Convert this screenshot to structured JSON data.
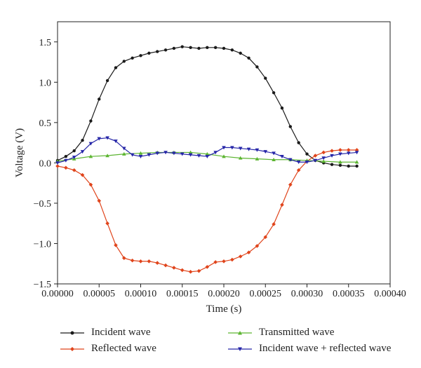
{
  "chart_data": {
    "type": "line",
    "xlabel": "Time (s)",
    "ylabel": "Voltage (V)",
    "xlim": [
      0,
      0.0004
    ],
    "ylim": [
      -1.5,
      1.75
    ],
    "xticks": [
      "0.00000",
      "0.00005",
      "0.00010",
      "0.00015",
      "0.00020",
      "0.00025",
      "0.00030",
      "0.00035",
      "0.00040"
    ],
    "yticks": [
      "1.5",
      "1.0",
      "0.5",
      "0.0",
      "−0.5",
      "−1.0",
      "−1.5"
    ],
    "grid": false,
    "legend_position": "bottom",
    "series": [
      {
        "name": "Incident wave",
        "color": "#1a1a1a",
        "marker": "circle",
        "x": [
          0,
          1e-05,
          2e-05,
          3e-05,
          4e-05,
          5e-05,
          6e-05,
          7e-05,
          8e-05,
          9e-05,
          0.0001,
          0.00011,
          0.00012,
          0.00013,
          0.00014,
          0.00015,
          0.00016,
          0.00017,
          0.00018,
          0.00019,
          0.0002,
          0.00021,
          0.00022,
          0.00023,
          0.00024,
          0.00025,
          0.00026,
          0.00027,
          0.00028,
          0.00029,
          0.0003,
          0.00031,
          0.00032,
          0.00033,
          0.00034,
          0.00035,
          0.00036
        ],
        "values": [
          0.03,
          0.08,
          0.15,
          0.28,
          0.52,
          0.79,
          1.02,
          1.18,
          1.26,
          1.3,
          1.33,
          1.36,
          1.38,
          1.4,
          1.42,
          1.44,
          1.43,
          1.42,
          1.43,
          1.43,
          1.42,
          1.4,
          1.36,
          1.3,
          1.19,
          1.05,
          0.87,
          0.68,
          0.45,
          0.25,
          0.11,
          0.03,
          0.0,
          -0.02,
          -0.03,
          -0.04,
          -0.04
        ]
      },
      {
        "name": "Reflected wave",
        "color": "#e0441b",
        "marker": "diamond",
        "x": [
          0,
          1e-05,
          2e-05,
          3e-05,
          4e-05,
          5e-05,
          6e-05,
          7e-05,
          8e-05,
          9e-05,
          0.0001,
          0.00011,
          0.00012,
          0.00013,
          0.00014,
          0.00015,
          0.00016,
          0.00017,
          0.00018,
          0.00019,
          0.0002,
          0.00021,
          0.00022,
          0.00023,
          0.00024,
          0.00025,
          0.00026,
          0.00027,
          0.00028,
          0.00029,
          0.0003,
          0.00031,
          0.00032,
          0.00033,
          0.00034,
          0.00035,
          0.00036
        ],
        "values": [
          -0.04,
          -0.06,
          -0.09,
          -0.15,
          -0.27,
          -0.47,
          -0.75,
          -1.02,
          -1.18,
          -1.21,
          -1.22,
          -1.22,
          -1.24,
          -1.27,
          -1.3,
          -1.33,
          -1.35,
          -1.34,
          -1.29,
          -1.23,
          -1.22,
          -1.2,
          -1.16,
          -1.11,
          -1.03,
          -0.92,
          -0.76,
          -0.52,
          -0.27,
          -0.09,
          0.02,
          0.09,
          0.13,
          0.15,
          0.16,
          0.16,
          0.16
        ]
      },
      {
        "name": "Transmitted wave",
        "color": "#5cb531",
        "marker": "triangle-up",
        "x": [
          0,
          2e-05,
          4e-05,
          6e-05,
          8e-05,
          0.0001,
          0.00012,
          0.00014,
          0.00016,
          0.00018,
          0.0002,
          0.00022,
          0.00024,
          0.00026,
          0.00028,
          0.0003,
          0.00032,
          0.00034,
          0.00036
        ],
        "values": [
          0.02,
          0.05,
          0.08,
          0.09,
          0.11,
          0.12,
          0.13,
          0.13,
          0.13,
          0.11,
          0.08,
          0.06,
          0.05,
          0.04,
          0.04,
          0.03,
          0.02,
          0.01,
          0.01
        ]
      },
      {
        "name": "Incident wave + reflected wave",
        "color": "#2626a8",
        "marker": "triangle-down",
        "x": [
          0,
          1e-05,
          2e-05,
          3e-05,
          4e-05,
          5e-05,
          6e-05,
          7e-05,
          8e-05,
          9e-05,
          0.0001,
          0.00011,
          0.00012,
          0.00013,
          0.00014,
          0.00015,
          0.00016,
          0.00017,
          0.00018,
          0.00019,
          0.0002,
          0.00021,
          0.00022,
          0.00023,
          0.00024,
          0.00025,
          0.00026,
          0.00027,
          0.00028,
          0.00029,
          0.0003,
          0.00031,
          0.00032,
          0.00033,
          0.00034,
          0.00035,
          0.00036
        ],
        "values": [
          0.0,
          0.03,
          0.07,
          0.14,
          0.24,
          0.3,
          0.31,
          0.27,
          0.18,
          0.1,
          0.08,
          0.1,
          0.12,
          0.13,
          0.12,
          0.11,
          0.1,
          0.09,
          0.08,
          0.13,
          0.19,
          0.19,
          0.18,
          0.17,
          0.16,
          0.14,
          0.12,
          0.08,
          0.04,
          0.01,
          0.01,
          0.03,
          0.06,
          0.09,
          0.11,
          0.12,
          0.13
        ]
      }
    ]
  }
}
